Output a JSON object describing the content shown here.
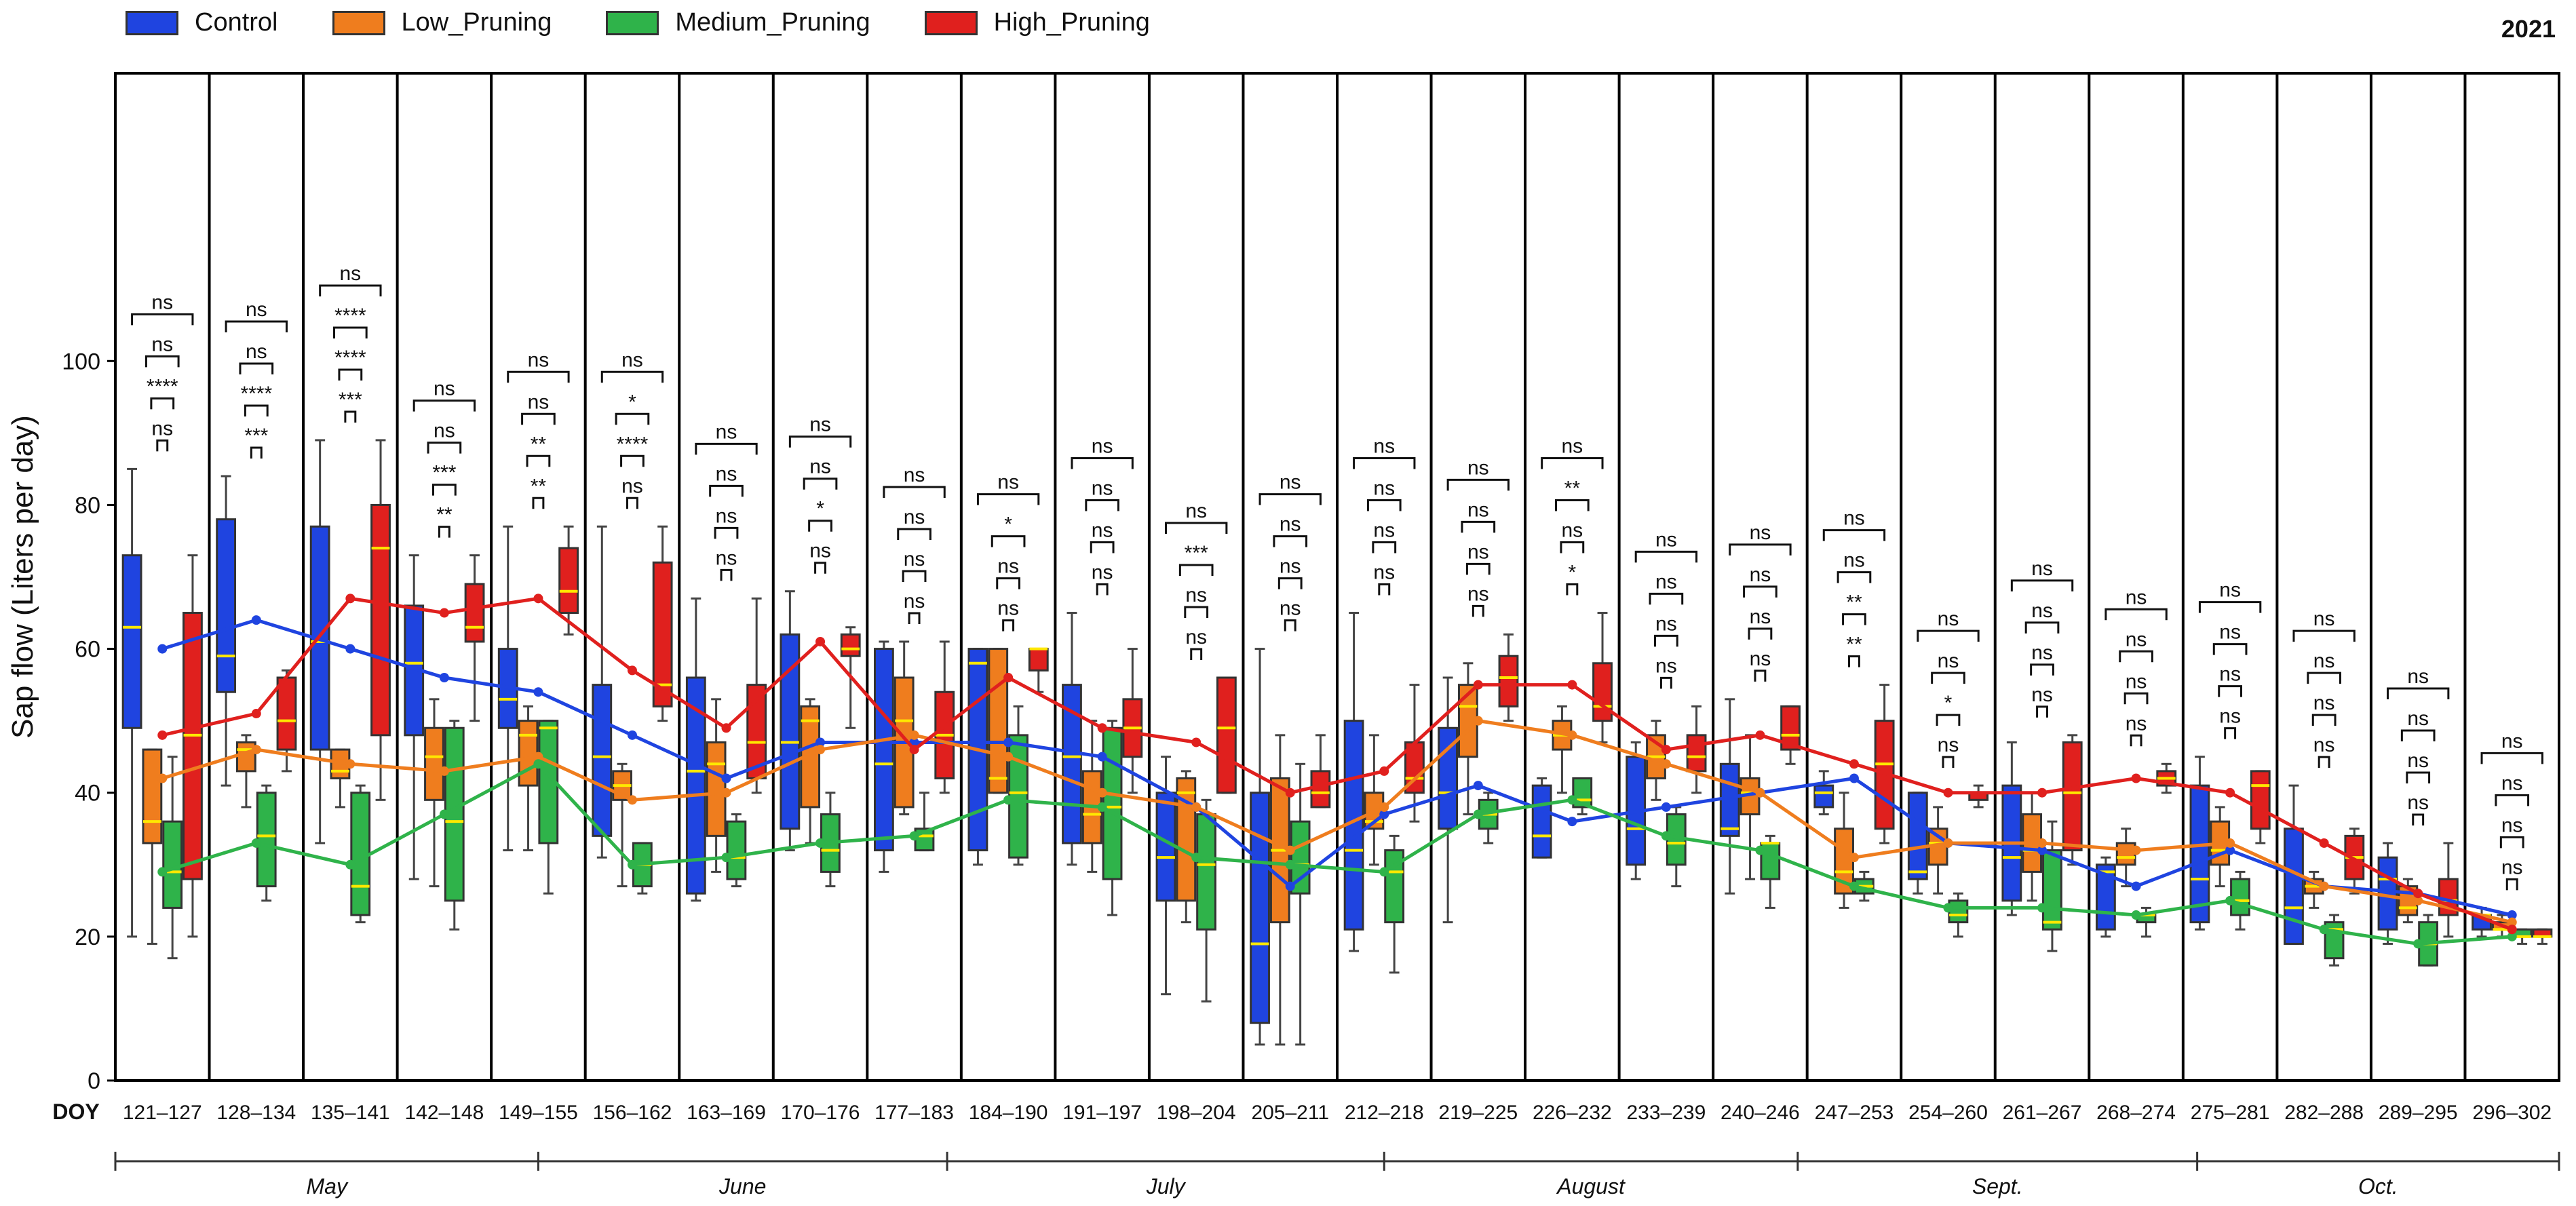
{
  "chart_data": {
    "type": "box",
    "year_label": "2021",
    "ylabel": "Sap flow (Liters per day)",
    "xlabel": "DOY",
    "ylim": [
      0,
      140
    ],
    "yticks": [
      0,
      20,
      40,
      60,
      80,
      100
    ],
    "categories": [
      "121–127",
      "128–134",
      "135–141",
      "142–148",
      "149–155",
      "156–162",
      "163–169",
      "170–176",
      "177–183",
      "184–190",
      "191–197",
      "198–204",
      "205–211",
      "212–218",
      "219–225",
      "226–232",
      "233–239",
      "240–246",
      "247–253",
      "254–260",
      "261–267",
      "268–274",
      "275–281",
      "282–288",
      "289–295",
      "296–302"
    ],
    "series": [
      {
        "name": "Control",
        "color": "#1f44e0",
        "means": [
          60,
          64,
          60,
          56,
          54,
          48,
          42,
          47,
          47,
          47,
          45,
          38,
          27,
          37,
          41,
          36,
          38,
          40,
          42,
          33,
          32,
          27,
          32,
          27,
          26,
          23
        ],
        "boxes": [
          [
            20,
            49,
            63,
            73,
            85
          ],
          [
            41,
            54,
            59,
            78,
            84
          ],
          [
            33,
            46,
            61,
            77,
            89
          ],
          [
            28,
            48,
            58,
            66,
            73
          ],
          [
            32,
            49,
            53,
            60,
            77
          ],
          [
            31,
            34,
            45,
            55,
            77
          ],
          [
            25,
            26,
            43,
            56,
            67
          ],
          [
            32,
            35,
            47,
            62,
            68
          ],
          [
            29,
            32,
            44,
            60,
            61
          ],
          [
            30,
            32,
            58,
            60,
            60
          ],
          [
            30,
            33,
            45,
            55,
            65
          ],
          [
            12,
            25,
            31,
            40,
            45
          ],
          [
            5,
            8,
            19,
            40,
            60
          ],
          [
            18,
            21,
            32,
            50,
            65
          ],
          [
            22,
            35,
            40,
            49,
            56
          ],
          [
            31,
            31,
            34,
            41,
            42
          ],
          [
            28,
            30,
            35,
            45,
            47
          ],
          [
            26,
            34,
            35,
            44,
            53
          ],
          [
            37,
            38,
            40,
            41,
            43
          ],
          [
            26,
            28,
            29,
            40,
            40
          ],
          [
            23,
            25,
            31,
            41,
            47
          ],
          [
            20,
            21,
            29,
            30,
            31
          ],
          [
            21,
            22,
            28,
            41,
            45
          ],
          [
            19,
            19,
            24,
            35,
            41
          ],
          [
            19,
            21,
            28,
            31,
            33
          ],
          [
            20,
            21,
            23,
            23,
            24
          ]
        ]
      },
      {
        "name": "Low_Pruning",
        "color": "#ef7d1e",
        "means": [
          42,
          46,
          44,
          43,
          45,
          39,
          40,
          46,
          48,
          45,
          40,
          38,
          32,
          38,
          50,
          48,
          44,
          40,
          31,
          33,
          33,
          32,
          33,
          27,
          25,
          22
        ],
        "boxes": [
          [
            19,
            33,
            36,
            46,
            46
          ],
          [
            38,
            43,
            46,
            47,
            48
          ],
          [
            38,
            42,
            43,
            46,
            46
          ],
          [
            27,
            39,
            45,
            49,
            53
          ],
          [
            32,
            41,
            48,
            50,
            52
          ],
          [
            27,
            39,
            41,
            43,
            44
          ],
          [
            29,
            34,
            44,
            47,
            53
          ],
          [
            33,
            38,
            50,
            52,
            53
          ],
          [
            37,
            38,
            50,
            56,
            61
          ],
          [
            40,
            40,
            42,
            60,
            60
          ],
          [
            29,
            33,
            37,
            43,
            50
          ],
          [
            22,
            25,
            40,
            42,
            43
          ],
          [
            5,
            22,
            32,
            42,
            48
          ],
          [
            30,
            35,
            36,
            40,
            48
          ],
          [
            37,
            45,
            52,
            55,
            58
          ],
          [
            40,
            46,
            48,
            50,
            52
          ],
          [
            39,
            42,
            45,
            48,
            50
          ],
          [
            28,
            37,
            40,
            42,
            48
          ],
          [
            24,
            26,
            29,
            35,
            40
          ],
          [
            26,
            30,
            33,
            35,
            38
          ],
          [
            25,
            29,
            32,
            37,
            40
          ],
          [
            27,
            30,
            31,
            33,
            35
          ],
          [
            27,
            30,
            32,
            36,
            38
          ],
          [
            24,
            26,
            27,
            28,
            29
          ],
          [
            22,
            23,
            24,
            27,
            28
          ],
          [
            20,
            21,
            21,
            22,
            23
          ]
        ]
      },
      {
        "name": "Medium_Pruning",
        "color": "#2fb34a",
        "means": [
          29,
          33,
          30,
          37,
          44,
          30,
          31,
          33,
          34,
          39,
          38,
          31,
          30,
          29,
          37,
          39,
          34,
          32,
          27,
          24,
          24,
          23,
          25,
          21,
          19,
          20
        ],
        "boxes": [
          [
            17,
            24,
            29,
            36,
            45
          ],
          [
            25,
            27,
            34,
            40,
            41
          ],
          [
            22,
            23,
            27,
            40,
            41
          ],
          [
            21,
            25,
            36,
            49,
            50
          ],
          [
            26,
            33,
            49,
            50,
            50
          ],
          [
            26,
            27,
            30,
            33,
            33
          ],
          [
            27,
            28,
            31,
            36,
            37
          ],
          [
            27,
            29,
            32,
            37,
            40
          ],
          [
            32,
            32,
            34,
            35,
            40
          ],
          [
            30,
            31,
            40,
            48,
            52
          ],
          [
            23,
            28,
            38,
            49,
            50
          ],
          [
            11,
            21,
            30,
            37,
            39
          ],
          [
            5,
            26,
            30,
            36,
            44
          ],
          [
            15,
            22,
            29,
            32,
            34
          ],
          [
            33,
            35,
            37,
            39,
            40
          ],
          [
            37,
            38,
            39,
            42,
            42
          ],
          [
            27,
            30,
            33,
            37,
            38
          ],
          [
            24,
            28,
            33,
            33,
            34
          ],
          [
            25,
            26,
            27,
            28,
            29
          ],
          [
            20,
            22,
            23,
            25,
            26
          ],
          [
            18,
            21,
            22,
            32,
            36
          ],
          [
            20,
            22,
            23,
            23,
            24
          ],
          [
            21,
            23,
            25,
            28,
            29
          ],
          [
            16,
            17,
            21,
            22,
            23
          ],
          [
            16,
            16,
            19,
            22,
            23
          ],
          [
            19,
            20,
            20,
            21,
            21
          ]
        ]
      },
      {
        "name": "High_Pruning",
        "color": "#e0201e",
        "means": [
          48,
          51,
          67,
          65,
          67,
          57,
          49,
          61,
          46,
          56,
          49,
          47,
          40,
          43,
          55,
          55,
          46,
          48,
          44,
          40,
          40,
          42,
          40,
          33,
          26,
          21
        ],
        "boxes": [
          [
            20,
            28,
            48,
            65,
            73
          ],
          [
            43,
            46,
            50,
            56,
            57
          ],
          [
            39,
            48,
            74,
            80,
            89
          ],
          [
            50,
            61,
            63,
            69,
            73
          ],
          [
            62,
            65,
            68,
            74,
            77
          ],
          [
            50,
            52,
            55,
            72,
            77
          ],
          [
            40,
            42,
            47,
            55,
            67
          ],
          [
            49,
            59,
            60,
            62,
            63
          ],
          [
            40,
            42,
            48,
            54,
            61
          ],
          [
            54,
            57,
            60,
            60,
            60
          ],
          [
            40,
            45,
            49,
            53,
            60
          ],
          [
            40,
            40,
            49,
            56,
            56
          ],
          [
            38,
            38,
            40,
            43,
            48
          ],
          [
            36,
            40,
            42,
            47,
            55
          ],
          [
            50,
            52,
            56,
            59,
            62
          ],
          [
            47,
            50,
            52,
            58,
            65
          ],
          [
            40,
            43,
            45,
            48,
            52
          ],
          [
            44,
            46,
            48,
            52,
            52
          ],
          [
            33,
            35,
            44,
            50,
            55
          ],
          [
            38,
            39,
            40,
            40,
            41
          ],
          [
            30,
            32,
            40,
            47,
            48
          ],
          [
            40,
            41,
            42,
            43,
            44
          ],
          [
            33,
            35,
            41,
            43,
            43
          ],
          [
            26,
            28,
            31,
            34,
            35
          ],
          [
            20,
            23,
            25,
            28,
            33
          ],
          [
            19,
            20,
            20,
            21,
            21
          ]
        ]
      }
    ],
    "significance": [
      [
        "ns",
        "****",
        "ns",
        "ns"
      ],
      [
        "***",
        "****",
        "ns",
        "ns"
      ],
      [
        "***",
        "****",
        "****",
        "ns"
      ],
      [
        "**",
        "***",
        "ns",
        "ns"
      ],
      [
        "**",
        "**",
        "ns",
        "ns"
      ],
      [
        "ns",
        "****",
        "*",
        "ns"
      ],
      [
        "ns",
        "ns",
        "ns",
        "ns"
      ],
      [
        "ns",
        "*",
        "ns",
        "ns"
      ],
      [
        "ns",
        "ns",
        "ns",
        "ns"
      ],
      [
        "ns",
        "ns",
        "*",
        "ns"
      ],
      [
        "ns",
        "ns",
        "ns",
        "ns"
      ],
      [
        "ns",
        "ns",
        "***",
        "ns"
      ],
      [
        "ns",
        "ns",
        "ns",
        "ns"
      ],
      [
        "ns",
        "ns",
        "ns",
        "ns"
      ],
      [
        "ns",
        "ns",
        "ns",
        "ns"
      ],
      [
        "*",
        "ns",
        "**",
        "ns"
      ],
      [
        "ns",
        "ns",
        "ns",
        "ns"
      ],
      [
        "ns",
        "ns",
        "ns",
        "ns"
      ],
      [
        "**",
        "**",
        "ns",
        "ns"
      ],
      [
        "ns",
        "*",
        "ns",
        "ns"
      ],
      [
        "ns",
        "ns",
        "ns",
        "ns"
      ],
      [
        "ns",
        "ns",
        "ns",
        "ns"
      ],
      [
        "ns",
        "ns",
        "ns",
        "ns"
      ],
      [
        "ns",
        "ns",
        "ns",
        "ns"
      ],
      [
        "ns",
        "ns",
        "ns",
        "ns"
      ],
      [
        "ns",
        "ns",
        "ns",
        "ns"
      ]
    ],
    "months": [
      {
        "label": "May",
        "from": 0,
        "to": 4.5
      },
      {
        "label": "June",
        "from": 4.5,
        "to": 8.85
      },
      {
        "label": "July",
        "from": 8.85,
        "to": 13.5
      },
      {
        "label": "August",
        "from": 13.5,
        "to": 17.9
      },
      {
        "label": "Sept.",
        "from": 17.9,
        "to": 22.15
      },
      {
        "label": "Oct.",
        "from": 22.15,
        "to": 26
      }
    ]
  }
}
